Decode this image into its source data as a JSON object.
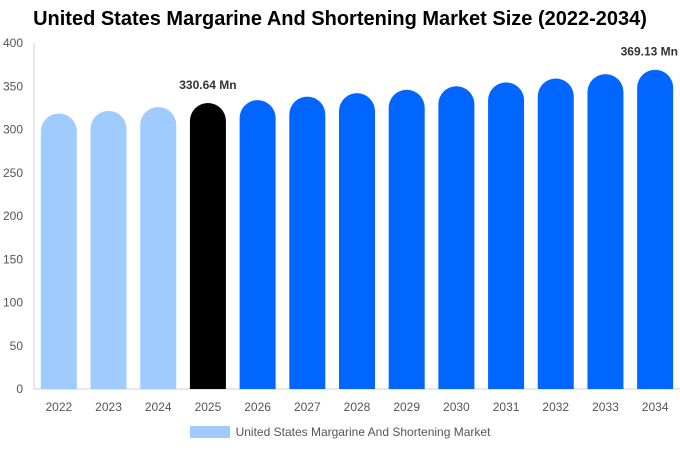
{
  "chart_data": {
    "type": "bar",
    "title": "United States Margarine And Shortening Market Size (2022-2034)",
    "categories": [
      "2022",
      "2023",
      "2024",
      "2025",
      "2026",
      "2027",
      "2028",
      "2029",
      "2030",
      "2031",
      "2032",
      "2033",
      "2034"
    ],
    "series": [
      {
        "name": "United States Margarine And Shortening Market",
        "values": [
          318.5,
          321.5,
          326.0,
          330.64,
          334.0,
          338.0,
          342.0,
          346.0,
          350.0,
          354.5,
          359.0,
          364.0,
          369.13
        ]
      }
    ],
    "data_labels": [
      {
        "category": "2025",
        "text": "330.64 Mn"
      },
      {
        "category": "2034",
        "text": "369.13 Mn"
      }
    ],
    "ylim": [
      0,
      400
    ],
    "yticks": [
      0,
      50,
      100,
      150,
      200,
      250,
      300,
      350,
      400
    ],
    "colors": {
      "historical": "#a0cbff",
      "current": "#000000",
      "forecast": "#0066ff"
    },
    "current_category": "2025",
    "legend_position": "bottom",
    "grid": false
  }
}
